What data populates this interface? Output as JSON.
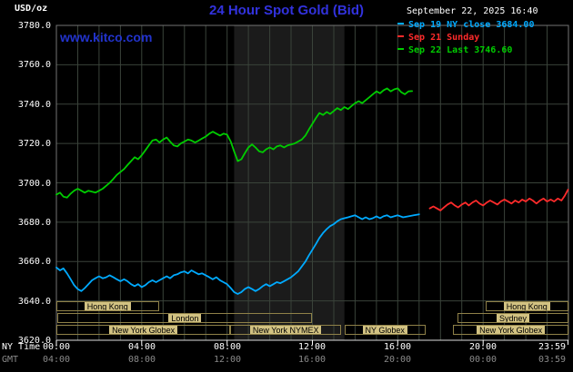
{
  "header": {
    "units": "USD/oz",
    "title": "24 Hour Spot Gold (Bid)",
    "title_color": "#3232dd",
    "datetime": "September 22, 2025 16:40",
    "watermark": "www.kitco.com",
    "watermark_color": "#2233cc"
  },
  "legend": [
    {
      "label": "Sep 19 NY close 3684.00",
      "color": "#00aaff"
    },
    {
      "label": "Sep 21 Sunday",
      "color": "#ff2b2b"
    },
    {
      "label": "Sep 22 Last 3746.60",
      "color": "#00cc00"
    }
  ],
  "axes": {
    "ny_time_label": "NY Time",
    "gmt_label": "GMT",
    "y_labels": [
      "3780.0",
      "3760.0",
      "3740.0",
      "3720.0",
      "3700.0",
      "3680.0",
      "3660.0",
      "3640.0",
      "3620.0"
    ],
    "x_ny_labels": [
      "00:00",
      "04:00",
      "08:00",
      "12:00",
      "16:00",
      "20:00",
      "23:59"
    ],
    "x_gmt_labels": [
      "04:00",
      "08:00",
      "12:00",
      "16:00",
      "20:00",
      "00:00",
      "03:59"
    ]
  },
  "sessions_style": {
    "label_bg": "#d2c282",
    "label_text": "#000000",
    "border": "#8f8148"
  },
  "sessions": [
    {
      "row": 1,
      "label": "Hong Kong",
      "from": 0.0,
      "to": 4.8
    },
    {
      "row": 1,
      "label": "Hong Kong",
      "from": 20.1,
      "to": 24.0
    },
    {
      "row": 2,
      "label": "London",
      "from": 0.05,
      "to": 12.0
    },
    {
      "row": 2,
      "label": "Sydney",
      "from": 18.8,
      "to": 24.0
    },
    {
      "row": 3,
      "label": "New York Globex",
      "from": 0.0,
      "to": 8.15
    },
    {
      "row": 3,
      "label": "New York NYMEX",
      "from": 8.15,
      "to": 13.35
    },
    {
      "row": 3,
      "label": "NY Globex",
      "from": 13.5,
      "to": 17.3
    },
    {
      "row": 3,
      "label": "New York Globex",
      "from": 18.6,
      "to": 24.0
    }
  ],
  "chart_data": {
    "type": "line",
    "title": "24 Hour Spot Gold (Bid)",
    "x_unit": "hours NY time",
    "x_range": [
      0,
      24
    ],
    "y_range": [
      3620,
      3780
    ],
    "y_step": 20,
    "grid": true,
    "grid_color": "#3a433a",
    "band_color": "#1b1b1b",
    "frame_color": "#757575",
    "axis_color": "#dddddd",
    "tick_color": "#ffffff",
    "highlight_band": {
      "from": 8.33,
      "to": 13.5
    },
    "tick_hours": [
      0,
      4,
      8,
      12,
      16,
      20,
      23.98
    ],
    "series": [
      {
        "name": "Sep 19 NY close",
        "color": "#00aaff",
        "last_value": 3684.0,
        "points": [
          [
            0.0,
            3657
          ],
          [
            0.17,
            3655.5
          ],
          [
            0.33,
            3656.5
          ],
          [
            0.5,
            3654
          ],
          [
            0.67,
            3651
          ],
          [
            0.83,
            3648
          ],
          [
            1.0,
            3646
          ],
          [
            1.17,
            3645
          ],
          [
            1.33,
            3646.5
          ],
          [
            1.5,
            3648.5
          ],
          [
            1.67,
            3650.5
          ],
          [
            1.83,
            3651.5
          ],
          [
            2.0,
            3652.5
          ],
          [
            2.17,
            3651.5
          ],
          [
            2.33,
            3652
          ],
          [
            2.5,
            3653
          ],
          [
            2.67,
            3652
          ],
          [
            2.83,
            3651
          ],
          [
            3.0,
            3650
          ],
          [
            3.17,
            3651
          ],
          [
            3.33,
            3650
          ],
          [
            3.5,
            3648.5
          ],
          [
            3.67,
            3647.5
          ],
          [
            3.83,
            3648.5
          ],
          [
            4.0,
            3647
          ],
          [
            4.17,
            3648
          ],
          [
            4.33,
            3649.5
          ],
          [
            4.5,
            3650.5
          ],
          [
            4.67,
            3649.5
          ],
          [
            4.83,
            3650.5
          ],
          [
            5.0,
            3651.5
          ],
          [
            5.17,
            3652.5
          ],
          [
            5.33,
            3651.5
          ],
          [
            5.5,
            3653
          ],
          [
            5.67,
            3653.5
          ],
          [
            5.83,
            3654.5
          ],
          [
            6.0,
            3655
          ],
          [
            6.17,
            3654
          ],
          [
            6.33,
            3655.5
          ],
          [
            6.5,
            3654.5
          ],
          [
            6.67,
            3653.5
          ],
          [
            6.83,
            3654
          ],
          [
            7.0,
            3653
          ],
          [
            7.17,
            3652
          ],
          [
            7.33,
            3651
          ],
          [
            7.5,
            3652
          ],
          [
            7.67,
            3650.5
          ],
          [
            7.83,
            3649.5
          ],
          [
            8.0,
            3648.5
          ],
          [
            8.17,
            3646.5
          ],
          [
            8.33,
            3644.5
          ],
          [
            8.5,
            3643.5
          ],
          [
            8.67,
            3644.5
          ],
          [
            8.83,
            3646
          ],
          [
            9.0,
            3647
          ],
          [
            9.17,
            3646
          ],
          [
            9.33,
            3645
          ],
          [
            9.5,
            3646
          ],
          [
            9.67,
            3647.5
          ],
          [
            9.83,
            3648.5
          ],
          [
            10.0,
            3647.5
          ],
          [
            10.17,
            3648.5
          ],
          [
            10.33,
            3649.5
          ],
          [
            10.5,
            3649
          ],
          [
            10.67,
            3650
          ],
          [
            10.83,
            3651
          ],
          [
            11.0,
            3652
          ],
          [
            11.17,
            3653.5
          ],
          [
            11.33,
            3655
          ],
          [
            11.5,
            3657.5
          ],
          [
            11.67,
            3660
          ],
          [
            11.83,
            3663
          ],
          [
            12.0,
            3666
          ],
          [
            12.17,
            3669
          ],
          [
            12.33,
            3672
          ],
          [
            12.5,
            3674.5
          ],
          [
            12.67,
            3676.5
          ],
          [
            12.83,
            3678
          ],
          [
            13.0,
            3679
          ],
          [
            13.17,
            3680.5
          ],
          [
            13.33,
            3681.5
          ],
          [
            13.5,
            3682
          ],
          [
            13.67,
            3682.5
          ],
          [
            13.83,
            3683
          ],
          [
            14.0,
            3683.5
          ],
          [
            14.17,
            3682.5
          ],
          [
            14.33,
            3681.5
          ],
          [
            14.5,
            3682.5
          ],
          [
            14.67,
            3681.5
          ],
          [
            14.83,
            3682
          ],
          [
            15.0,
            3683
          ],
          [
            15.17,
            3682
          ],
          [
            15.33,
            3683
          ],
          [
            15.5,
            3683.5
          ],
          [
            15.67,
            3682.5
          ],
          [
            15.83,
            3683
          ],
          [
            16.0,
            3683.5
          ],
          [
            16.25,
            3682.5
          ],
          [
            16.5,
            3683
          ],
          [
            16.75,
            3683.5
          ],
          [
            17.0,
            3684
          ]
        ]
      },
      {
        "name": "Sep 21 Sunday",
        "color": "#ff2b2b",
        "points": [
          [
            17.5,
            3687
          ],
          [
            17.67,
            3688
          ],
          [
            17.83,
            3687
          ],
          [
            18.0,
            3686
          ],
          [
            18.17,
            3687.5
          ],
          [
            18.33,
            3689
          ],
          [
            18.5,
            3690
          ],
          [
            18.67,
            3688.5
          ],
          [
            18.83,
            3687.5
          ],
          [
            19.0,
            3689
          ],
          [
            19.17,
            3690
          ],
          [
            19.33,
            3688.5
          ],
          [
            19.5,
            3690
          ],
          [
            19.67,
            3691
          ],
          [
            19.83,
            3689.5
          ],
          [
            20.0,
            3688.5
          ],
          [
            20.17,
            3690
          ],
          [
            20.33,
            3691
          ],
          [
            20.5,
            3690
          ],
          [
            20.67,
            3689
          ],
          [
            20.83,
            3690.5
          ],
          [
            21.0,
            3691.5
          ],
          [
            21.17,
            3690.5
          ],
          [
            21.33,
            3689.5
          ],
          [
            21.5,
            3691
          ],
          [
            21.67,
            3690
          ],
          [
            21.83,
            3691.5
          ],
          [
            22.0,
            3690.5
          ],
          [
            22.17,
            3692
          ],
          [
            22.33,
            3691
          ],
          [
            22.5,
            3689.5
          ],
          [
            22.67,
            3691
          ],
          [
            22.83,
            3692
          ],
          [
            23.0,
            3690.5
          ],
          [
            23.17,
            3691.5
          ],
          [
            23.33,
            3690.5
          ],
          [
            23.5,
            3692
          ],
          [
            23.67,
            3691
          ],
          [
            23.83,
            3693.5
          ],
          [
            23.98,
            3696.5
          ]
        ]
      },
      {
        "name": "Sep 22 Last",
        "color": "#00cc00",
        "last_value": 3746.6,
        "points": [
          [
            0.0,
            3694
          ],
          [
            0.17,
            3695
          ],
          [
            0.33,
            3693
          ],
          [
            0.5,
            3692.5
          ],
          [
            0.67,
            3694.5
          ],
          [
            0.83,
            3696
          ],
          [
            1.0,
            3697
          ],
          [
            1.17,
            3696
          ],
          [
            1.33,
            3695
          ],
          [
            1.5,
            3696
          ],
          [
            1.67,
            3695.5
          ],
          [
            1.83,
            3695
          ],
          [
            2.0,
            3696
          ],
          [
            2.17,
            3697
          ],
          [
            2.33,
            3698.5
          ],
          [
            2.5,
            3700
          ],
          [
            2.67,
            3702
          ],
          [
            2.83,
            3704
          ],
          [
            3.0,
            3705.5
          ],
          [
            3.17,
            3707
          ],
          [
            3.33,
            3709
          ],
          [
            3.5,
            3711
          ],
          [
            3.67,
            3713
          ],
          [
            3.83,
            3712
          ],
          [
            4.0,
            3714
          ],
          [
            4.17,
            3716.5
          ],
          [
            4.33,
            3719
          ],
          [
            4.5,
            3721.5
          ],
          [
            4.67,
            3722
          ],
          [
            4.83,
            3720.5
          ],
          [
            5.0,
            3722
          ],
          [
            5.17,
            3723
          ],
          [
            5.33,
            3721
          ],
          [
            5.5,
            3719
          ],
          [
            5.67,
            3718.5
          ],
          [
            5.83,
            3720
          ],
          [
            6.0,
            3721
          ],
          [
            6.17,
            3722
          ],
          [
            6.33,
            3721.5
          ],
          [
            6.5,
            3720.5
          ],
          [
            6.67,
            3721.5
          ],
          [
            6.83,
            3722.5
          ],
          [
            7.0,
            3723.5
          ],
          [
            7.17,
            3725
          ],
          [
            7.33,
            3726
          ],
          [
            7.5,
            3725
          ],
          [
            7.67,
            3724
          ],
          [
            7.83,
            3725
          ],
          [
            8.0,
            3724.5
          ],
          [
            8.17,
            3721
          ],
          [
            8.33,
            3716
          ],
          [
            8.5,
            3711
          ],
          [
            8.67,
            3712
          ],
          [
            8.83,
            3715
          ],
          [
            9.0,
            3718
          ],
          [
            9.17,
            3719.5
          ],
          [
            9.33,
            3718
          ],
          [
            9.5,
            3716
          ],
          [
            9.67,
            3715.5
          ],
          [
            9.83,
            3717
          ],
          [
            10.0,
            3718
          ],
          [
            10.17,
            3717
          ],
          [
            10.33,
            3718.5
          ],
          [
            10.5,
            3719
          ],
          [
            10.67,
            3718
          ],
          [
            10.83,
            3719
          ],
          [
            11.0,
            3719.5
          ],
          [
            11.17,
            3720
          ],
          [
            11.33,
            3721
          ],
          [
            11.5,
            3722
          ],
          [
            11.67,
            3724
          ],
          [
            11.83,
            3727
          ],
          [
            12.0,
            3730
          ],
          [
            12.17,
            3733
          ],
          [
            12.33,
            3735.5
          ],
          [
            12.5,
            3734.5
          ],
          [
            12.67,
            3736
          ],
          [
            12.83,
            3735
          ],
          [
            13.0,
            3736.5
          ],
          [
            13.17,
            3738
          ],
          [
            13.33,
            3737
          ],
          [
            13.5,
            3738.5
          ],
          [
            13.67,
            3737.5
          ],
          [
            13.83,
            3739
          ],
          [
            14.0,
            3740.5
          ],
          [
            14.17,
            3741.5
          ],
          [
            14.33,
            3740.5
          ],
          [
            14.5,
            3742
          ],
          [
            14.67,
            3743.5
          ],
          [
            14.83,
            3745
          ],
          [
            15.0,
            3746.5
          ],
          [
            15.17,
            3745.5
          ],
          [
            15.33,
            3747
          ],
          [
            15.5,
            3748
          ],
          [
            15.67,
            3746.5
          ],
          [
            15.83,
            3747.5
          ],
          [
            16.0,
            3748
          ],
          [
            16.17,
            3746
          ],
          [
            16.33,
            3745
          ],
          [
            16.5,
            3746.5
          ],
          [
            16.67,
            3746.6
          ]
        ]
      }
    ]
  }
}
